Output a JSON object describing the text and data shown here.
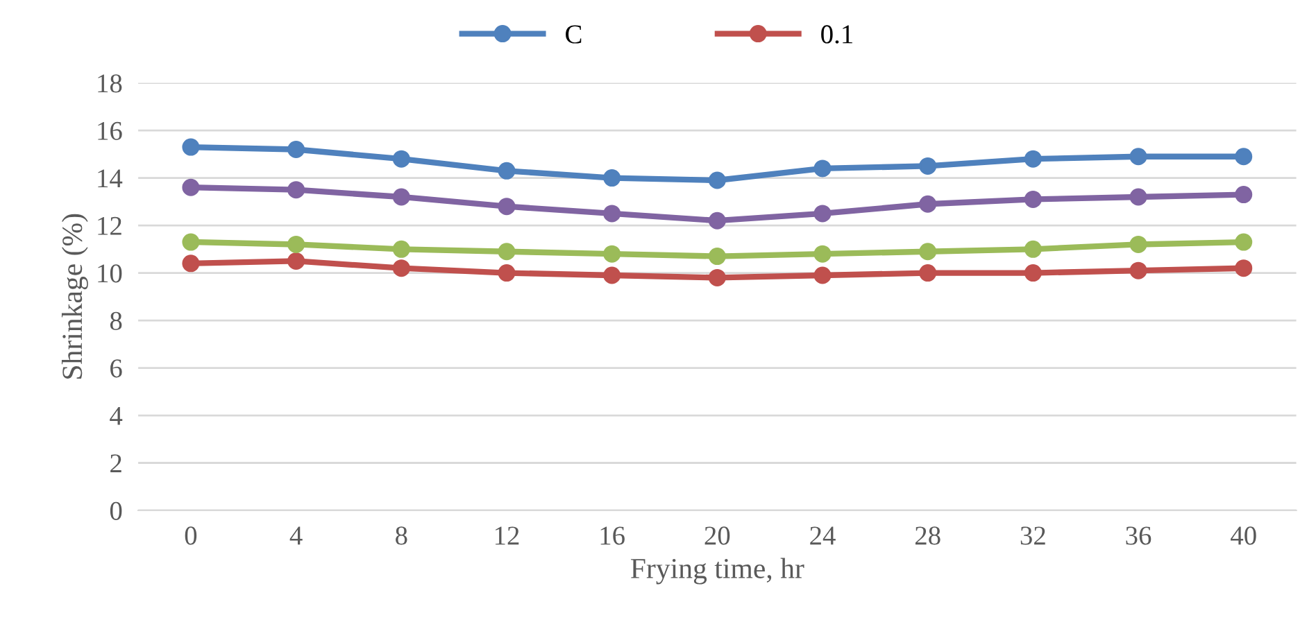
{
  "chart_data": {
    "type": "line",
    "xlabel": "Frying time, hr",
    "ylabel": "Shrinkage (%)",
    "categories": [
      "0",
      "4",
      "8",
      "12",
      "16",
      "20",
      "24",
      "28",
      "32",
      "36",
      "40"
    ],
    "series": [
      {
        "name": "C",
        "color": "#4f81bd",
        "values": [
          15.3,
          15.2,
          14.8,
          14.3,
          14.0,
          13.9,
          14.4,
          14.5,
          14.8,
          14.9,
          14.9
        ]
      },
      {
        "name": "0.1",
        "color": "#c0504d",
        "values": [
          10.4,
          10.5,
          10.2,
          10.0,
          9.9,
          9.8,
          9.9,
          10.0,
          10.0,
          10.1,
          10.2
        ]
      },
      {
        "color": "#9bbb59",
        "values": [
          11.3,
          11.2,
          11.0,
          10.9,
          10.8,
          10.7,
          10.8,
          10.9,
          11.0,
          11.2,
          11.3
        ]
      },
      {
        "color": "#8064a2",
        "values": [
          13.6,
          13.5,
          13.2,
          12.8,
          12.5,
          12.2,
          12.5,
          12.9,
          13.1,
          13.2,
          13.3
        ]
      }
    ],
    "ylim": [
      0,
      18
    ],
    "yticks": [
      0,
      2,
      4,
      6,
      8,
      10,
      12,
      14,
      16,
      18
    ],
    "grid": "y",
    "legend": "top",
    "marker": "circle",
    "line_style": "solid"
  }
}
